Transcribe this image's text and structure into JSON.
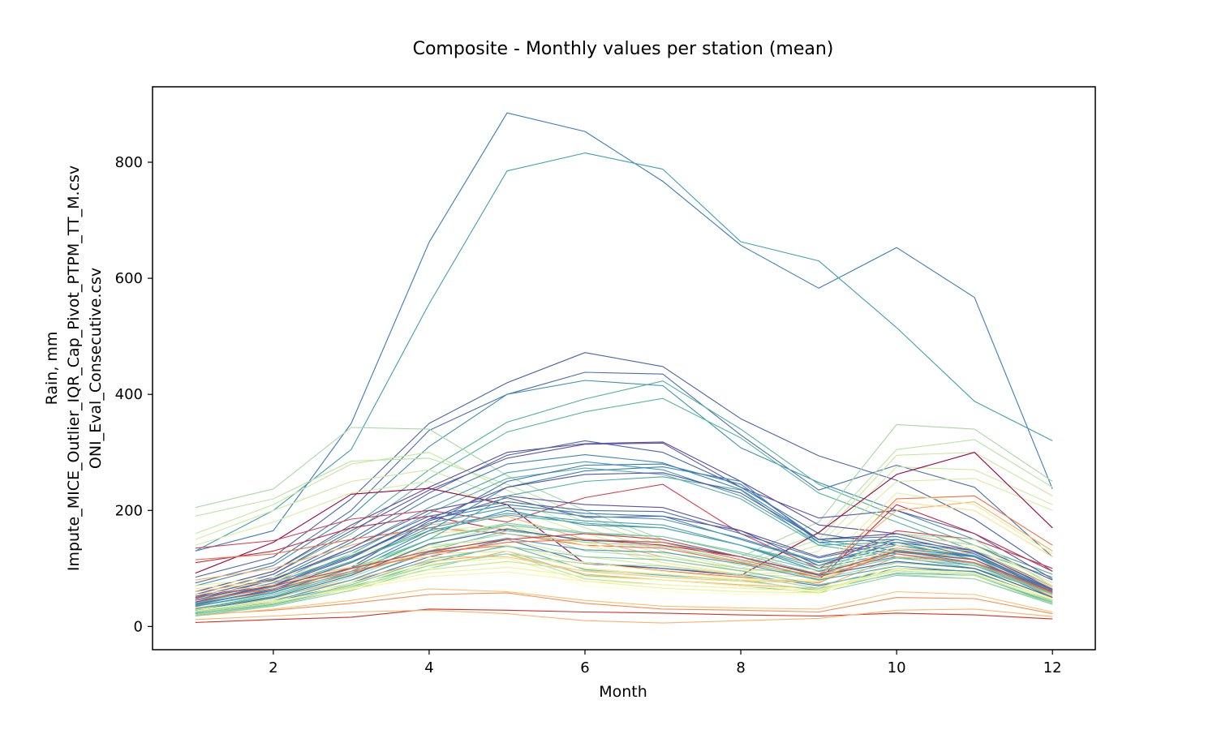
{
  "chart_data": {
    "type": "line",
    "title": "Composite - Monthly values per station (mean)",
    "xlabel": "Month",
    "ylabel_lines": [
      "Rain, mm",
      "Impute_MICE_Outlier_IQR_Cap_Pivot_PTPM_TT_M.csv",
      "ONI_Eval_Consecutive.csv"
    ],
    "xlim": [
      0.45,
      12.55
    ],
    "ylim": [
      -40,
      930
    ],
    "xticks": [
      2,
      4,
      6,
      8,
      10,
      12
    ],
    "yticks": [
      0,
      200,
      400,
      600,
      800
    ],
    "grid": false,
    "legend": "none",
    "x": [
      1,
      2,
      3,
      4,
      5,
      6,
      7,
      8,
      9,
      10,
      11,
      12
    ],
    "series": [
      {
        "color": "#3a7bb8",
        "values": [
          130,
          165,
          350,
          662,
          885,
          853,
          767,
          657,
          583,
          653,
          567,
          237
        ]
      },
      {
        "color": "#3f9fb5",
        "values": [
          130,
          200,
          305,
          556,
          785,
          816,
          788,
          663,
          630,
          515,
          388,
          320
        ]
      },
      {
        "color": "#4964a8",
        "values": [
          85,
          120,
          220,
          350,
          420,
          472,
          448,
          358,
          294,
          252,
          185,
          95
        ]
      },
      {
        "color": "#4a6fb0",
        "values": [
          75,
          110,
          200,
          338,
          400,
          438,
          435,
          330,
          235,
          278,
          240,
          120
        ]
      },
      {
        "color": "#3d8fb2",
        "values": [
          70,
          105,
          190,
          310,
          400,
          424,
          415,
          308,
          248,
          200,
          150,
          100
        ]
      },
      {
        "color": "#4fb19a",
        "values": [
          60,
          95,
          170,
          270,
          352,
          392,
          423,
          340,
          245,
          190,
          140,
          90
        ]
      },
      {
        "color": "#55b79e",
        "values": [
          55,
          90,
          160,
          255,
          335,
          370,
          393,
          325,
          230,
          180,
          130,
          85
        ]
      },
      {
        "color": "#a7d9a4",
        "values": [
          205,
          237,
          343,
          340,
          260,
          200,
          150,
          120,
          180,
          348,
          340,
          250
        ]
      },
      {
        "color": "#b9e3a0",
        "values": [
          190,
          220,
          285,
          290,
          245,
          190,
          145,
          110,
          160,
          305,
          322,
          240
        ]
      },
      {
        "color": "#c7e79d",
        "values": [
          160,
          210,
          280,
          300,
          235,
          180,
          140,
          105,
          150,
          295,
          300,
          225
        ]
      },
      {
        "color": "#cfeaa0",
        "values": [
          150,
          200,
          250,
          270,
          220,
          170,
          130,
          100,
          140,
          275,
          270,
          210
        ]
      },
      {
        "color": "#d6ee9b",
        "values": [
          140,
          180,
          230,
          250,
          205,
          160,
          125,
          95,
          130,
          250,
          255,
          200
        ]
      },
      {
        "color": "#5a4ba3",
        "values": [
          60,
          95,
          175,
          240,
          300,
          315,
          318,
          250,
          175,
          160,
          140,
          80
        ]
      },
      {
        "color": "#5d52a8",
        "values": [
          55,
          90,
          165,
          235,
          290,
          314,
          316,
          240,
          187,
          200,
          160,
          82
        ]
      },
      {
        "color": "#4767ad",
        "values": [
          50,
          85,
          150,
          230,
          295,
          320,
          300,
          240,
          160,
          140,
          120,
          70
        ]
      },
      {
        "color": "#3f84b6",
        "values": [
          45,
          80,
          145,
          220,
          280,
          296,
          282,
          236,
          150,
          130,
          110,
          65
        ]
      },
      {
        "color": "#4d9db4",
        "values": [
          45,
          75,
          135,
          205,
          265,
          284,
          270,
          225,
          145,
          125,
          105,
          60
        ]
      },
      {
        "color": "#58b0a8",
        "values": [
          40,
          70,
          125,
          195,
          255,
          273,
          262,
          220,
          140,
          120,
          100,
          58
        ]
      },
      {
        "color": "#9e0142",
        "values": [
          92,
          145,
          228,
          238,
          210,
          108,
          100,
          88,
          162,
          262,
          300,
          170
        ]
      },
      {
        "color": "#d53e4f",
        "values": [
          135,
          148,
          185,
          200,
          180,
          222,
          245,
          160,
          100,
          165,
          150,
          100
        ]
      },
      {
        "color": "#c2294a",
        "values": [
          110,
          130,
          170,
          190,
          165,
          150,
          140,
          120,
          80,
          210,
          160,
          95
        ]
      },
      {
        "color": "#f46d43",
        "values": [
          115,
          125,
          150,
          170,
          160,
          140,
          135,
          110,
          85,
          220,
          225,
          140
        ]
      },
      {
        "color": "#fdae61",
        "values": [
          80,
          100,
          140,
          175,
          190,
          150,
          120,
          100,
          90,
          200,
          215,
          130
        ]
      },
      {
        "color": "#fee08b",
        "values": [
          65,
          80,
          120,
          160,
          170,
          140,
          110,
          90,
          95,
          215,
          200,
          120
        ]
      },
      {
        "color": "#e0f3a0",
        "values": [
          70,
          85,
          125,
          165,
          175,
          145,
          115,
          95,
          100,
          230,
          210,
          125
        ]
      },
      {
        "color": "#d73027",
        "values": [
          7,
          12,
          16,
          30,
          28,
          25,
          23,
          20,
          18,
          23,
          20,
          13
        ]
      },
      {
        "color": "#fdb366",
        "values": [
          12,
          18,
          25,
          28,
          22,
          10,
          6,
          10,
          14,
          28,
          30,
          17
        ]
      },
      {
        "color": "#f88d52",
        "values": [
          20,
          28,
          40,
          55,
          58,
          40,
          30,
          28,
          25,
          50,
          48,
          22
        ]
      },
      {
        "color": "#fdbf6f",
        "values": [
          18,
          30,
          45,
          65,
          60,
          45,
          35,
          32,
          30,
          60,
          55,
          25
        ]
      },
      {
        "color": "#5e4fa2",
        "values": [
          38,
          62,
          102,
          182,
          222,
          188,
          190,
          165,
          105,
          145,
          115,
          55
        ]
      },
      {
        "color": "#3288bd",
        "values": [
          30,
          55,
          95,
          160,
          200,
          175,
          170,
          140,
          95,
          120,
          110,
          50
        ]
      },
      {
        "color": "#66c2a5",
        "values": [
          25,
          45,
          80,
          130,
          165,
          150,
          145,
          120,
          80,
          130,
          120,
          50
        ]
      },
      {
        "color": "#abdda4",
        "values": [
          35,
          55,
          90,
          140,
          175,
          130,
          120,
          100,
          90,
          160,
          150,
          70
        ]
      },
      {
        "color": "#4574b3",
        "values": [
          22,
          42,
          75,
          120,
          150,
          110,
          100,
          90,
          70,
          100,
          95,
          45
        ]
      },
      {
        "color": "#5bb8a5",
        "values": [
          20,
          38,
          68,
          110,
          140,
          98,
          88,
          80,
          62,
          92,
          88,
          40
        ]
      },
      {
        "color": "#89cfa4",
        "values": [
          18,
          35,
          62,
          100,
          130,
          88,
          80,
          70,
          58,
          88,
          82,
          38
        ]
      },
      {
        "color": "#b4e0a2",
        "values": [
          24,
          40,
          70,
          105,
          125,
          82,
          72,
          66,
          60,
          100,
          90,
          42
        ]
      },
      {
        "color": "#e6f598",
        "values": [
          28,
          45,
          75,
          108,
          118,
          78,
          66,
          60,
          58,
          110,
          100,
          48
        ]
      },
      {
        "color": "#ffffbf",
        "values": [
          30,
          48,
          72,
          100,
          110,
          70,
          60,
          56,
          55,
          105,
          98,
          46
        ]
      },
      {
        "color": "#fdae61",
        "values": [
          32,
          50,
          80,
          112,
          125,
          90,
          80,
          72,
          66,
          120,
          110,
          52
        ]
      },
      {
        "color": "#f46d43",
        "values": [
          40,
          60,
          92,
          128,
          140,
          110,
          96,
          85,
          75,
          135,
          125,
          58
        ]
      },
      {
        "color": "#3b7eb7",
        "values": [
          42,
          72,
          120,
          185,
          210,
          195,
          190,
          150,
          110,
          135,
          120,
          62
        ]
      },
      {
        "color": "#4e9fb5",
        "values": [
          36,
          65,
          110,
          170,
          195,
          182,
          175,
          140,
          100,
          128,
          115,
          58
        ]
      },
      {
        "color": "#6dc4a6",
        "values": [
          30,
          55,
          95,
          150,
          175,
          160,
          155,
          125,
          90,
          118,
          105,
          55
        ]
      },
      {
        "color": "#99d5a4",
        "values": [
          26,
          48,
          85,
          135,
          160,
          145,
          138,
          112,
          82,
          110,
          100,
          50
        ]
      },
      {
        "color": "#5c52a6",
        "values": [
          48,
          80,
          135,
          200,
          225,
          210,
          205,
          165,
          120,
          150,
          130,
          70
        ]
      },
      {
        "color": "#4670b1",
        "values": [
          52,
          82,
          130,
          190,
          215,
          200,
          198,
          160,
          118,
          145,
          128,
          68
        ]
      },
      {
        "color": "#3f96b4",
        "values": [
          46,
          75,
          122,
          178,
          205,
          190,
          185,
          152,
          112,
          140,
          122,
          64
        ]
      },
      {
        "color": "#52b2a1",
        "values": [
          40,
          68,
          112,
          165,
          192,
          178,
          170,
          140,
          105,
          132,
          115,
          60
        ]
      },
      {
        "color": "#7cc9a5",
        "values": [
          34,
          60,
          100,
          150,
          178,
          162,
          155,
          128,
          96,
          125,
          108,
          56
        ]
      },
      {
        "color": "#d0eb9c",
        "values": [
          45,
          65,
          100,
          140,
          150,
          120,
          105,
          90,
          85,
          160,
          140,
          75
        ]
      },
      {
        "color": "#f0f8a5",
        "values": [
          50,
          70,
          105,
          135,
          140,
          110,
          95,
          82,
          80,
          150,
          135,
          70
        ]
      },
      {
        "color": "#fee08b",
        "values": [
          55,
          72,
          100,
          125,
          130,
          100,
          90,
          80,
          78,
          140,
          130,
          68
        ]
      },
      {
        "color": "#fdc473",
        "values": [
          60,
          78,
          102,
          120,
          120,
          95,
          85,
          78,
          76,
          135,
          125,
          66
        ]
      },
      {
        "color": "#3b5fa7",
        "values": [
          28,
          50,
          88,
          142,
          168,
          148,
          145,
          120,
          88,
          112,
          100,
          50
        ]
      },
      {
        "color": "#4b9bb5",
        "values": [
          24,
          44,
          80,
          128,
          152,
          132,
          128,
          108,
          80,
          104,
          94,
          46
        ]
      },
      {
        "color": "#72c6a6",
        "values": [
          22,
          40,
          72,
          115,
          138,
          120,
          115,
          96,
          72,
          96,
          88,
          42
        ]
      },
      {
        "color": "#a3d9a4",
        "values": [
          20,
          36,
          66,
          105,
          125,
          108,
          104,
          88,
          66,
          90,
          82,
          40
        ]
      },
      {
        "color": "#c5e79e",
        "values": [
          25,
          40,
          68,
          98,
          112,
          96,
          90,
          78,
          64,
          96,
          88,
          44
        ]
      },
      {
        "color": "#eaf69b",
        "values": [
          27,
          42,
          66,
          92,
          102,
          86,
          80,
          70,
          62,
          100,
          92,
          46
        ]
      },
      {
        "color": "#fff2a8",
        "values": [
          29,
          44,
          64,
          86,
          94,
          78,
          72,
          66,
          60,
          98,
          92,
          47
        ]
      },
      {
        "color": "#3288bd",
        "values": [
          35,
          58,
          100,
          165,
          240,
          268,
          275,
          250,
          145,
          150,
          120,
          60
        ]
      },
      {
        "color": "#4bafa6",
        "values": [
          30,
          52,
          92,
          150,
          225,
          250,
          258,
          235,
          140,
          145,
          115,
          58
        ]
      },
      {
        "color": "#3b77b5",
        "values": [
          38,
          64,
          110,
          175,
          250,
          278,
          280,
          245,
          150,
          155,
          125,
          62
        ]
      },
      {
        "color": "#5a4fa5",
        "values": [
          42,
          70,
          118,
          185,
          240,
          262,
          265,
          230,
          150,
          160,
          130,
          64
        ]
      },
      {
        "color": "#d53e4f",
        "values": [
          50,
          70,
          100,
          130,
          150,
          160,
          150,
          120,
          90,
          130,
          115,
          60
        ]
      },
      {
        "color": "#f46d43",
        "values": [
          45,
          65,
          95,
          125,
          145,
          150,
          145,
          115,
          85,
          125,
          110,
          58
        ]
      }
    ]
  }
}
